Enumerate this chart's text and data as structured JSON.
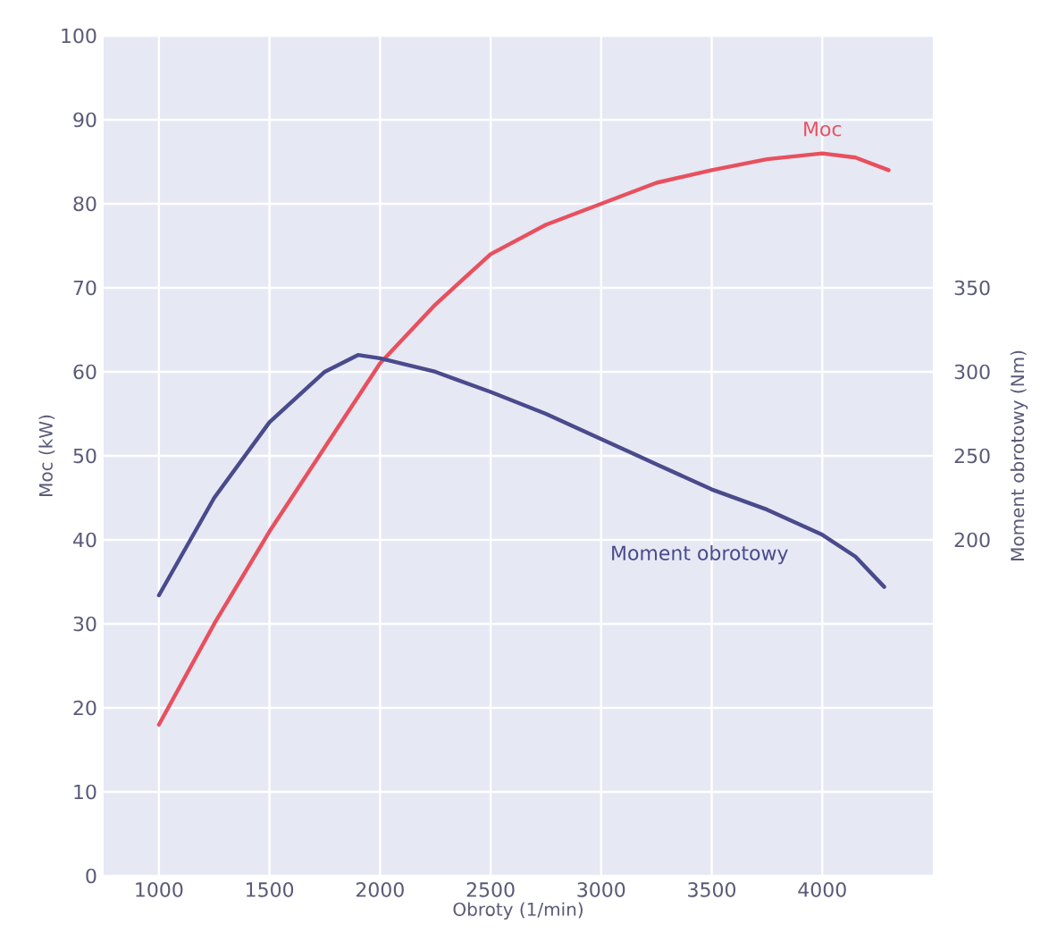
{
  "chart_data": {
    "type": "line",
    "xlabel": "Obroty (1/min)",
    "ylabel": "Moc (kW)",
    "y2label": "Moment obrotowy (Nm)",
    "xlim": [
      750,
      4500
    ],
    "xticks": [
      1000,
      1500,
      2000,
      2500,
      3000,
      3500,
      4000
    ],
    "ylim": [
      0,
      100
    ],
    "yticks": [
      0,
      10,
      20,
      30,
      40,
      50,
      60,
      70,
      80,
      90,
      100
    ],
    "y2lim": [
      0,
      500
    ],
    "y2ticks": [
      200,
      250,
      300,
      350
    ],
    "grid": true,
    "series": [
      {
        "name": "Moc",
        "color": "#e8505e",
        "x": [
          1000,
          1250,
          1500,
          1750,
          2000,
          2250,
          2500,
          2750,
          3000,
          3250,
          3500,
          3750,
          4000,
          4150,
          4300
        ],
        "values": [
          18,
          30,
          41,
          51,
          61,
          68,
          74,
          77.5,
          80,
          82.5,
          84,
          85.3,
          86,
          85.5,
          84
        ]
      },
      {
        "name": "Moment obrotowy",
        "color": "#4a4a8c",
        "axis": "y2",
        "x": [
          1000,
          1250,
          1500,
          1750,
          1900,
          2000,
          2250,
          2500,
          2750,
          3000,
          3250,
          3500,
          3750,
          4000,
          4150,
          4280
        ],
        "values": [
          167,
          225,
          270,
          300,
          310,
          308,
          300,
          288,
          275,
          260,
          245,
          230,
          218,
          203,
          190,
          172
        ]
      }
    ]
  }
}
